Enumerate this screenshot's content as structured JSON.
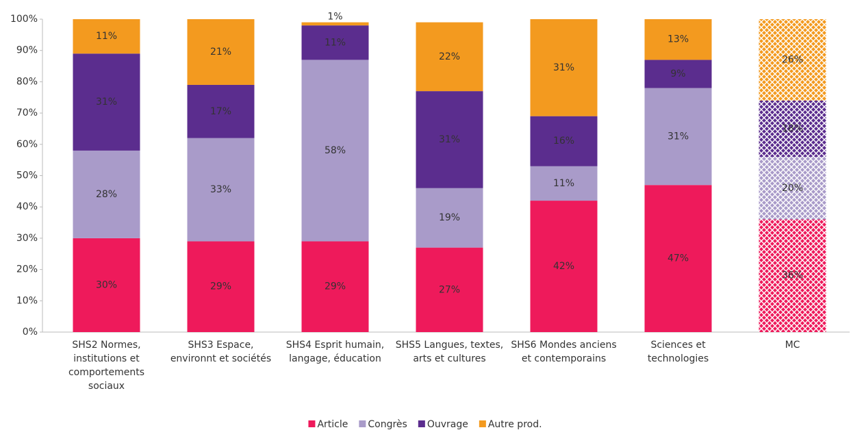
{
  "chart_data": {
    "type": "stacked_bar",
    "categories": [
      "SHS2 Normes, institutions et comportements sociaux",
      "SHS3 Espace, environnt et sociétés",
      "SHS4 Esprit humain, langage, éducation",
      "SHS5 Langues, textes, arts et cultures",
      "SHS6 Mondes anciens et contemporains",
      "Sciences et technologies",
      "MC"
    ],
    "hatched": [
      false,
      false,
      false,
      false,
      false,
      false,
      true
    ],
    "series": [
      {
        "name": "Article",
        "color": "#ee1a5b",
        "values": [
          30,
          29,
          29,
          27,
          42,
          47,
          36
        ],
        "value_labels": [
          "30%",
          "29%",
          "29%",
          "27%",
          "42%",
          "47%",
          "36%"
        ]
      },
      {
        "name": "Congrès",
        "color": "#a99bc9",
        "values": [
          28,
          33,
          58,
          19,
          11,
          31,
          20
        ],
        "value_labels": [
          "28%",
          "33%",
          "58%",
          "19%",
          "11%",
          "31%",
          "20%"
        ]
      },
      {
        "name": "Ouvrage",
        "color": "#5b2d8e",
        "values": [
          31,
          17,
          11,
          31,
          16,
          9,
          18
        ],
        "value_labels": [
          "31%",
          "17%",
          "11%",
          "31%",
          "16%",
          "9%",
          "18%"
        ]
      },
      {
        "name": "Autre prod.",
        "color": "#f39a1f",
        "values": [
          11,
          21,
          1,
          22,
          31,
          13,
          26
        ],
        "value_labels": [
          "11%",
          "21%",
          "1%",
          "22%",
          "31%",
          "13%",
          "26%"
        ]
      }
    ],
    "ylim": [
      0,
      100
    ],
    "yticks": [
      {
        "value": 0,
        "label": "0%"
      },
      {
        "value": 10,
        "label": "10%"
      },
      {
        "value": 20,
        "label": "20%"
      },
      {
        "value": 30,
        "label": "30%"
      },
      {
        "value": 40,
        "label": "40%"
      },
      {
        "value": 50,
        "label": "50%"
      },
      {
        "value": 60,
        "label": "60%"
      },
      {
        "value": 70,
        "label": "70%"
      },
      {
        "value": 80,
        "label": "80%"
      },
      {
        "value": 90,
        "label": "90%"
      },
      {
        "value": 100,
        "label": "100%"
      }
    ],
    "grid": false,
    "legend": "bottom"
  }
}
